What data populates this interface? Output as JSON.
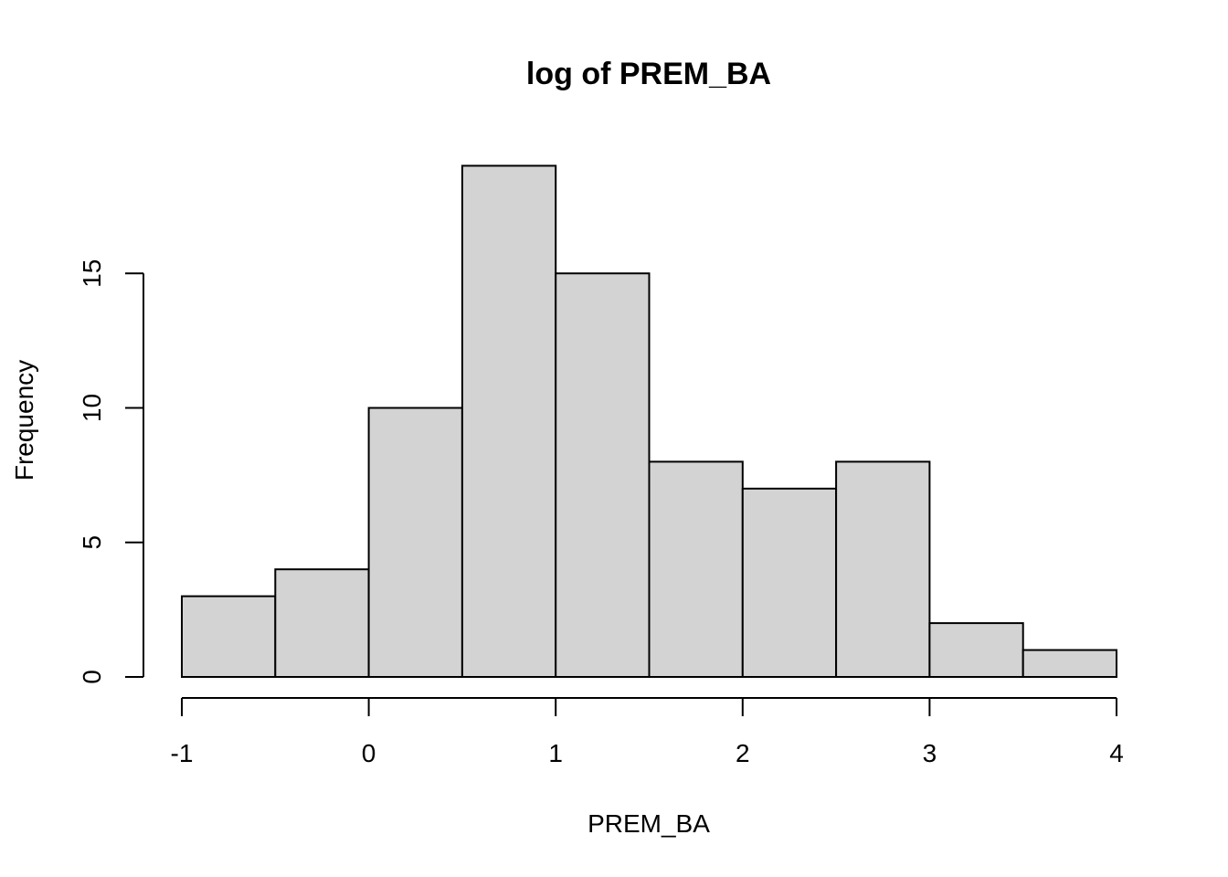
{
  "chart_data": {
    "type": "bar",
    "title": "log of PREM_BA",
    "xlabel": "PREM_BA",
    "ylabel": "Frequency",
    "bins": [
      {
        "x0": -1.0,
        "x1": -0.5,
        "count": 3
      },
      {
        "x0": -0.5,
        "x1": 0.0,
        "count": 4
      },
      {
        "x0": 0.0,
        "x1": 0.5,
        "count": 10
      },
      {
        "x0": 0.5,
        "x1": 1.0,
        "count": 19
      },
      {
        "x0": 1.0,
        "x1": 1.5,
        "count": 15
      },
      {
        "x0": 1.5,
        "x1": 2.0,
        "count": 8
      },
      {
        "x0": 2.0,
        "x1": 2.5,
        "count": 7
      },
      {
        "x0": 2.5,
        "x1": 3.0,
        "count": 8
      },
      {
        "x0": 3.0,
        "x1": 3.5,
        "count": 2
      },
      {
        "x0": 3.5,
        "x1": 4.0,
        "count": 1
      }
    ],
    "xticks": [
      -1,
      0,
      1,
      2,
      3,
      4
    ],
    "xtick_labels": [
      "-1",
      "0",
      "1",
      "2",
      "3",
      "4"
    ],
    "yticks": [
      0,
      5,
      10,
      15
    ],
    "ytick_labels": [
      "0",
      "5",
      "10",
      "15"
    ],
    "xlim": [
      -1,
      4
    ],
    "ylim": [
      0,
      19
    ],
    "grid": false,
    "bar_fill": "#d3d3d3",
    "bar_stroke": "#000000"
  }
}
